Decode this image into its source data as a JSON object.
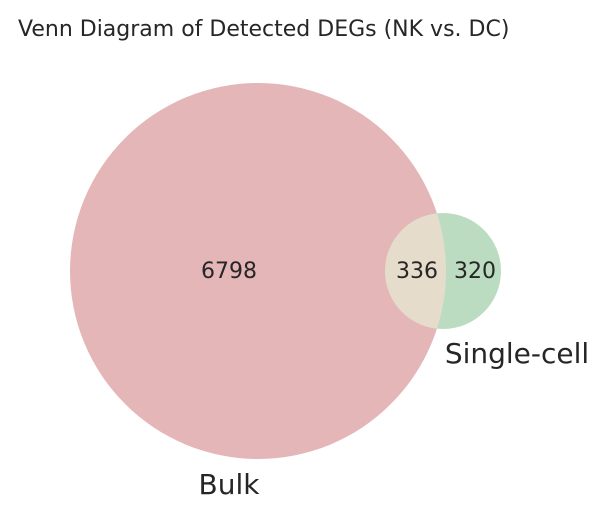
{
  "title": "Venn Diagram of Detected DEGs (NK vs. DC)",
  "chart_data": {
    "type": "venn",
    "title": "Venn Diagram of Detected DEGs (NK vs. DC)",
    "sets": [
      {
        "name": "Bulk",
        "only": 6798,
        "color": "#e5b6b7"
      },
      {
        "name": "Single-cell",
        "only": 320,
        "color": "#bcdcc1"
      }
    ],
    "intersection": 336,
    "intersection_color": "#e6dccb"
  },
  "labels": {
    "bulk": "Bulk",
    "single_cell": "Single-cell",
    "bulk_only": "6798",
    "overlap": "336",
    "single_only": "320"
  }
}
